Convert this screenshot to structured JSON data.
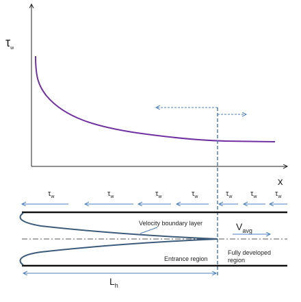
{
  "plot": {
    "y_label": {
      "base": "τ",
      "sub": "w"
    },
    "x_label": "x"
  },
  "tube": {
    "shear_labels": [
      {
        "base": "τ",
        "sub": "w"
      },
      {
        "base": "τ",
        "sub": "w"
      },
      {
        "base": "τ",
        "sub": "w"
      },
      {
        "base": "τ",
        "sub": "w"
      },
      {
        "base": "τ",
        "sub": "w"
      },
      {
        "base": "τ",
        "sub": "w"
      },
      {
        "base": "τ",
        "sub": "w"
      }
    ],
    "velocity_boundary_layer": "Velocity boundary layer",
    "average_velocity": {
      "base": "V",
      "sub": "avg"
    },
    "entrance_region": "Entrance region",
    "fully_developed_region": [
      "Fully developed",
      "region"
    ],
    "entrance_length": {
      "base": "L",
      "sub": "h"
    }
  }
}
